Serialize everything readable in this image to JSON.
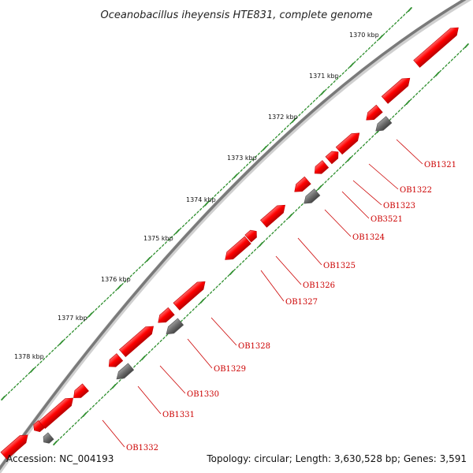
{
  "title": "Oceanobacillus iheyensis HTE831, complete genome",
  "footer": {
    "accession": "Accession: NC_004193",
    "summary": "Topology: circular; Length: 3,630,528 bp; Genes: 3,591"
  },
  "scale_labels": [
    "1370 kbp",
    "1371 kbp",
    "1372 kbp",
    "1373 kbp",
    "1374 kbp",
    "1375 kbp",
    "1376 kbp",
    "1377 kbp",
    "1378 kbp"
  ],
  "gene_labels": [
    "OB1321",
    "OB1322",
    "OB1323",
    "OB3521",
    "OB1324",
    "OB1325",
    "OB1326",
    "OB1327",
    "OB1328",
    "OB1329",
    "OB1330",
    "OB1331",
    "OB1332"
  ],
  "colors": {
    "cds": "#ff0000",
    "cds_light": "#ff7070",
    "cds_dark": "#b00000",
    "other_feature": "#6a6a6a",
    "backbone": "#7a7a7a",
    "gc_track": "#2f8f2f",
    "label": "#cc0000"
  }
}
